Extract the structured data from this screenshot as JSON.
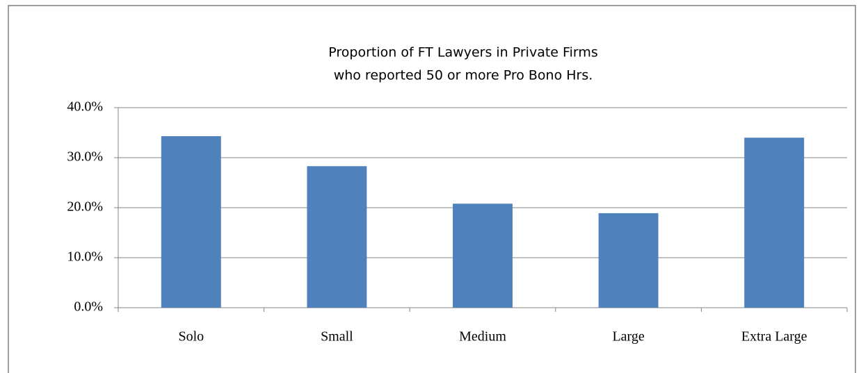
{
  "chart_data": {
    "type": "bar",
    "title": [
      "Proportion of FT Lawyers in Private Firms",
      "who reported 50 or more Pro Bono Hrs."
    ],
    "categories": [
      "Solo",
      "Small",
      "Medium",
      "Large",
      "Extra Large"
    ],
    "values": [
      34.3,
      28.3,
      20.8,
      18.9,
      34.0
    ],
    "color": "#4f81bd",
    "ylim": [
      0,
      40
    ],
    "yticks": [
      {
        "value": 0,
        "label": "0.0%"
      },
      {
        "value": 10,
        "label": "10.0%"
      },
      {
        "value": 20,
        "label": "20.0%"
      },
      {
        "value": 30,
        "label": "30.0%"
      },
      {
        "value": 40,
        "label": "40.0%"
      }
    ],
    "grid": true
  }
}
